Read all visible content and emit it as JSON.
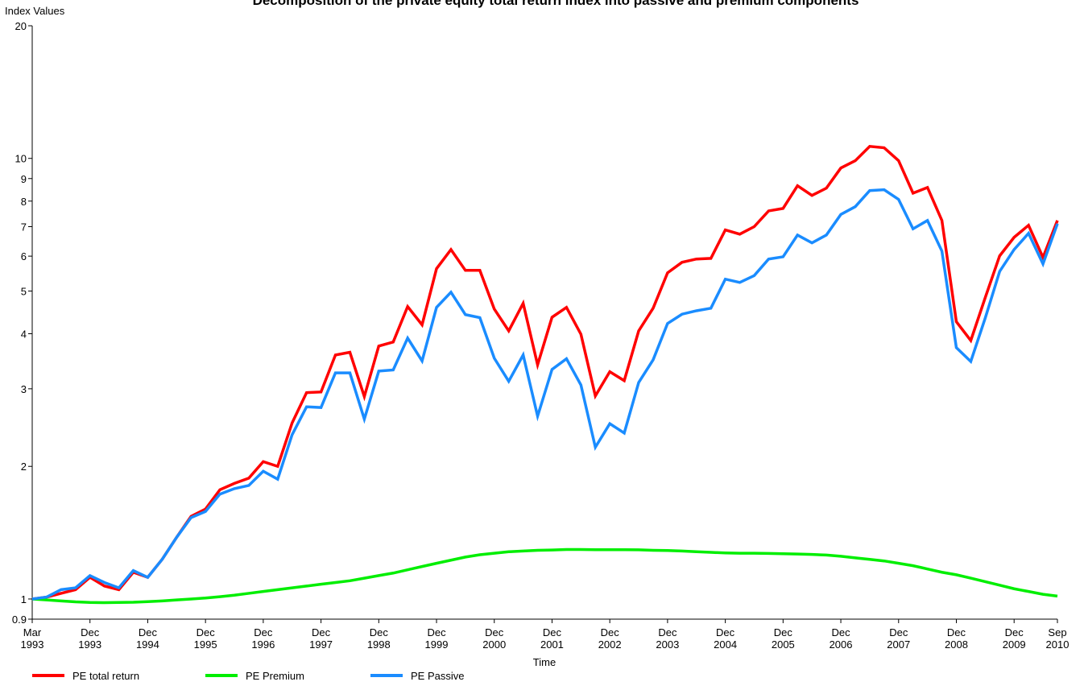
{
  "chart_data": {
    "type": "line",
    "title": "Decomposition of the private equity total return index into passive and premium components",
    "y_label": "Index Values",
    "x_label": "Time",
    "log_scale": true,
    "grid": false,
    "legend": "bottom",
    "ylim": [
      0.9,
      20
    ],
    "yticks": [
      0.9,
      1,
      2,
      3,
      4,
      5,
      6,
      7,
      8,
      9,
      10,
      20
    ],
    "categories": [
      "Mar 1993",
      null,
      null,
      null,
      "Dec 1993",
      null,
      null,
      null,
      "Dec 1994",
      null,
      null,
      null,
      "Dec 1995",
      null,
      null,
      null,
      "Dec 1996",
      null,
      null,
      null,
      "Dec 1997",
      null,
      null,
      null,
      "Dec 1998",
      null,
      null,
      null,
      "Dec 1999",
      null,
      null,
      null,
      "Dec 2000",
      null,
      null,
      null,
      "Dec 2001",
      null,
      null,
      null,
      "Dec 2002",
      null,
      null,
      null,
      "Dec 2003",
      null,
      null,
      null,
      "Dec 2004",
      null,
      null,
      null,
      "Dec 2005",
      null,
      null,
      null,
      "Dec 2006",
      null,
      null,
      null,
      "Dec 2007",
      null,
      null,
      null,
      "Dec 2008",
      null,
      null,
      null,
      "Dec 2009",
      null,
      null,
      "Sep 2010"
    ],
    "series": [
      {
        "name": "PE total return",
        "color": "#ff0000",
        "values": [
          1.0,
          1.01,
          1.03,
          1.05,
          1.12,
          1.07,
          1.05,
          1.15,
          1.12,
          1.23,
          1.38,
          1.54,
          1.6,
          1.77,
          1.83,
          1.88,
          2.05,
          2.0,
          2.51,
          2.94,
          2.95,
          3.58,
          3.63,
          2.88,
          3.75,
          3.83,
          4.61,
          4.19,
          5.62,
          6.21,
          5.57,
          5.57,
          4.55,
          4.06,
          4.69,
          3.4,
          4.36,
          4.59,
          3.99,
          2.89,
          3.28,
          3.13,
          4.06,
          4.57,
          5.5,
          5.81,
          5.91,
          5.93,
          6.88,
          6.73,
          7.0,
          7.6,
          7.7,
          8.67,
          8.24,
          8.56,
          9.51,
          9.88,
          10.65,
          10.57,
          9.88,
          8.34,
          8.59,
          7.23,
          4.26,
          3.86,
          4.83,
          6.01,
          6.62,
          7.05,
          5.96,
          7.23
        ]
      },
      {
        "name": "PE Premium",
        "color": "#00ee00",
        "values": [
          1.0,
          0.995,
          0.99,
          0.985,
          0.982,
          0.981,
          0.982,
          0.983,
          0.986,
          0.99,
          0.995,
          1.0,
          1.005,
          1.012,
          1.02,
          1.03,
          1.04,
          1.05,
          1.06,
          1.07,
          1.08,
          1.09,
          1.1,
          1.115,
          1.13,
          1.145,
          1.165,
          1.185,
          1.205,
          1.225,
          1.245,
          1.26,
          1.27,
          1.28,
          1.285,
          1.29,
          1.292,
          1.295,
          1.295,
          1.294,
          1.294,
          1.294,
          1.293,
          1.29,
          1.288,
          1.285,
          1.28,
          1.276,
          1.272,
          1.27,
          1.27,
          1.269,
          1.267,
          1.265,
          1.262,
          1.258,
          1.25,
          1.24,
          1.23,
          1.22,
          1.205,
          1.19,
          1.17,
          1.15,
          1.135,
          1.115,
          1.095,
          1.075,
          1.055,
          1.04,
          1.025,
          1.015
        ]
      },
      {
        "name": "PE Passive",
        "color": "#1a8cff",
        "values": [
          1.0,
          1.01,
          1.05,
          1.06,
          1.13,
          1.09,
          1.06,
          1.16,
          1.12,
          1.23,
          1.38,
          1.53,
          1.58,
          1.73,
          1.78,
          1.81,
          1.95,
          1.87,
          2.36,
          2.73,
          2.72,
          3.26,
          3.26,
          2.56,
          3.29,
          3.31,
          3.91,
          3.47,
          4.59,
          4.97,
          4.42,
          4.35,
          3.52,
          3.12,
          3.58,
          2.6,
          3.32,
          3.51,
          3.06,
          2.21,
          2.5,
          2.38,
          3.1,
          3.49,
          4.22,
          4.43,
          4.51,
          4.57,
          5.32,
          5.23,
          5.42,
          5.91,
          5.98,
          6.7,
          6.43,
          6.7,
          7.46,
          7.77,
          8.45,
          8.49,
          8.07,
          6.92,
          7.23,
          6.16,
          3.72,
          3.46,
          4.34,
          5.54,
          6.21,
          6.76,
          5.76,
          7.11
        ]
      }
    ]
  }
}
